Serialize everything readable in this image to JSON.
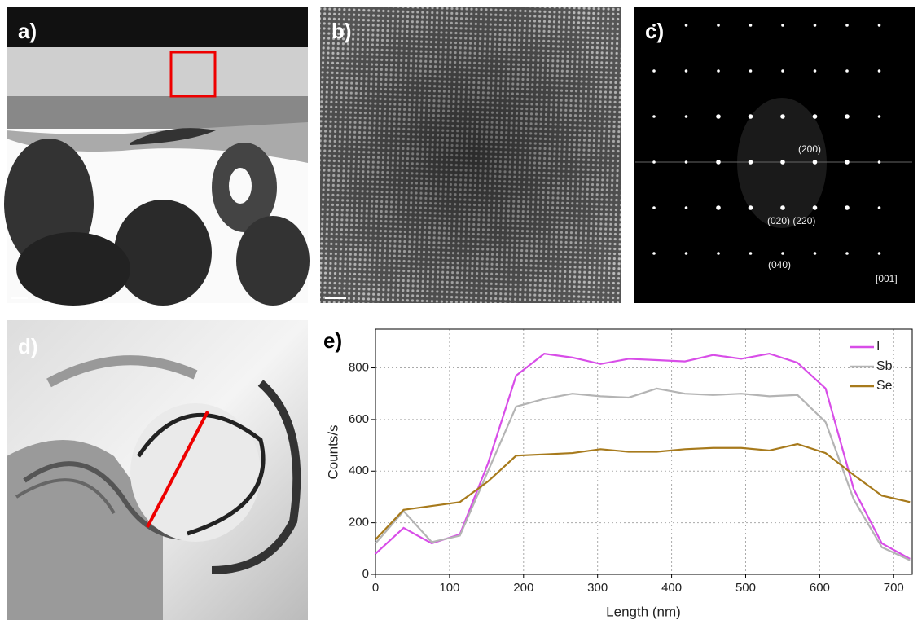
{
  "panels": {
    "a": {
      "label": "a)"
    },
    "b": {
      "label": "b)"
    },
    "c": {
      "label": "c)"
    },
    "d": {
      "label": "d)"
    },
    "e": {
      "label": "e)"
    }
  },
  "fft_labels": [
    "(200)",
    "(020) (220)",
    "(040)",
    "[001]"
  ],
  "chart_data": {
    "type": "line",
    "x_label": "Length (nm)",
    "y_label": "Counts/s",
    "x": [
      0,
      38,
      76,
      114,
      152,
      190,
      228,
      266,
      304,
      342,
      380,
      418,
      456,
      494,
      532,
      570,
      608,
      646,
      684,
      722
    ],
    "series": [
      {
        "name": "I",
        "color": "#d84de8",
        "values": [
          80,
          180,
          120,
          155,
          430,
          770,
          855,
          840,
          815,
          835,
          830,
          825,
          850,
          835,
          855,
          820,
          720,
          330,
          120,
          60
        ]
      },
      {
        "name": "Sb",
        "color": "#b4b4b4",
        "values": [
          120,
          245,
          125,
          150,
          400,
          650,
          680,
          700,
          690,
          685,
          720,
          700,
          695,
          700,
          690,
          695,
          590,
          290,
          105,
          55
        ]
      },
      {
        "name": "Se",
        "color": "#a77a1c",
        "values": [
          135,
          250,
          265,
          280,
          360,
          460,
          465,
          470,
          485,
          475,
          475,
          485,
          490,
          490,
          480,
          505,
          470,
          385,
          305,
          280
        ]
      }
    ],
    "xlim": [
      0,
      725
    ],
    "ylim": [
      0,
      950
    ],
    "xticks": [
      0,
      100,
      200,
      300,
      400,
      500,
      600,
      700
    ],
    "yticks": [
      0,
      200,
      400,
      600,
      800
    ],
    "grid": true,
    "legend": "upper-right"
  }
}
